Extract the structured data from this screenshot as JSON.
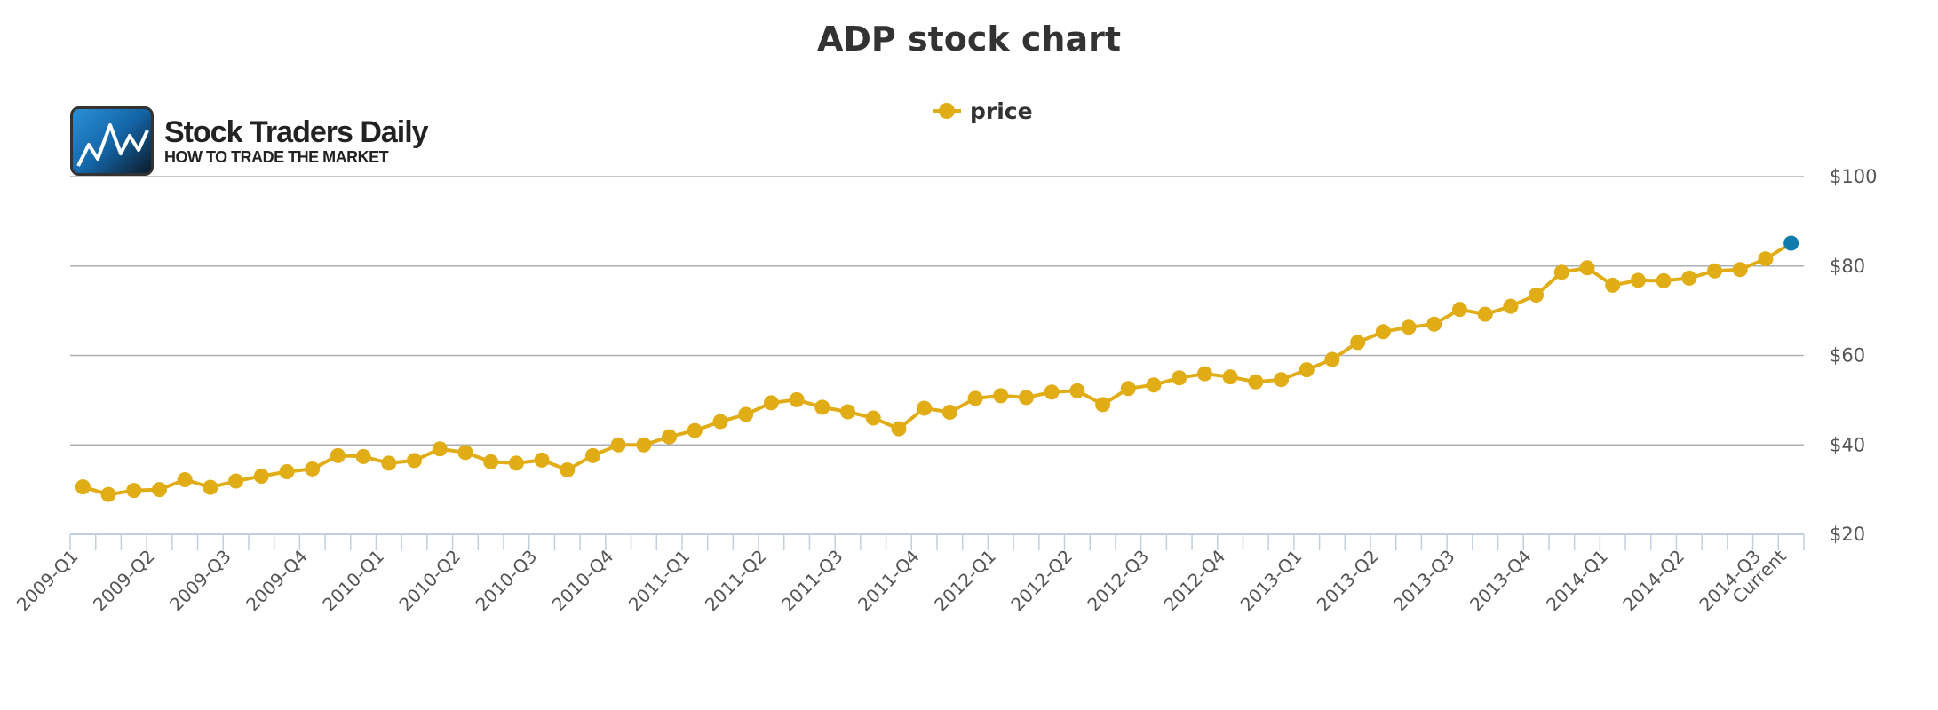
{
  "chart_data": {
    "type": "line",
    "title": "ADP stock chart",
    "legend": {
      "position": "top-center",
      "entries": [
        "price"
      ]
    },
    "logo": {
      "name": "Stock Traders Daily",
      "tagline": "HOW TO TRADE THE MARKET"
    },
    "y_axis": {
      "position": "right",
      "ylim": [
        20,
        100
      ],
      "ticks": [
        20,
        40,
        60,
        80,
        100
      ],
      "tick_labels": [
        "$20",
        "$40",
        "$60",
        "$80",
        "$100"
      ],
      "grid": true
    },
    "x_axis": {
      "tick_labels": [
        "2009-Q1",
        "2009-Q2",
        "2009-Q3",
        "2009-Q4",
        "2010-Q1",
        "2010-Q2",
        "2010-Q3",
        "2010-Q4",
        "2011-Q1",
        "2011-Q2",
        "2011-Q3",
        "2011-Q4",
        "2012-Q1",
        "2012-Q2",
        "2012-Q3",
        "2012-Q4",
        "2013-Q1",
        "2013-Q2",
        "2013-Q3",
        "2013-Q4",
        "2014-Q1",
        "2014-Q2",
        "2014-Q3",
        "Current"
      ],
      "label_step": 3
    },
    "series": [
      {
        "name": "price",
        "color": "#e1ad16",
        "last_point_color": "#117bab",
        "values": [
          30.6,
          28.9,
          29.8,
          30.0,
          32.2,
          30.5,
          31.9,
          33.0,
          34.0,
          34.6,
          37.6,
          37.4,
          35.9,
          36.5,
          39.1,
          38.3,
          36.2,
          35.9,
          36.6,
          34.4,
          37.6,
          40.0,
          40.0,
          41.8,
          43.2,
          45.2,
          46.8,
          49.4,
          50.1,
          48.4,
          47.4,
          46.0,
          43.6,
          48.2,
          47.3,
          50.4,
          51.0,
          50.6,
          51.8,
          52.1,
          49.0,
          52.6,
          53.4,
          55.0,
          55.9,
          55.2,
          54.1,
          54.6,
          56.8,
          59.1,
          62.9,
          65.3,
          66.3,
          67.0,
          70.3,
          69.2,
          71.0,
          73.5,
          78.6,
          79.6,
          75.7,
          76.8,
          76.7,
          77.3,
          78.9,
          79.2,
          81.6,
          85.1
        ]
      }
    ]
  }
}
